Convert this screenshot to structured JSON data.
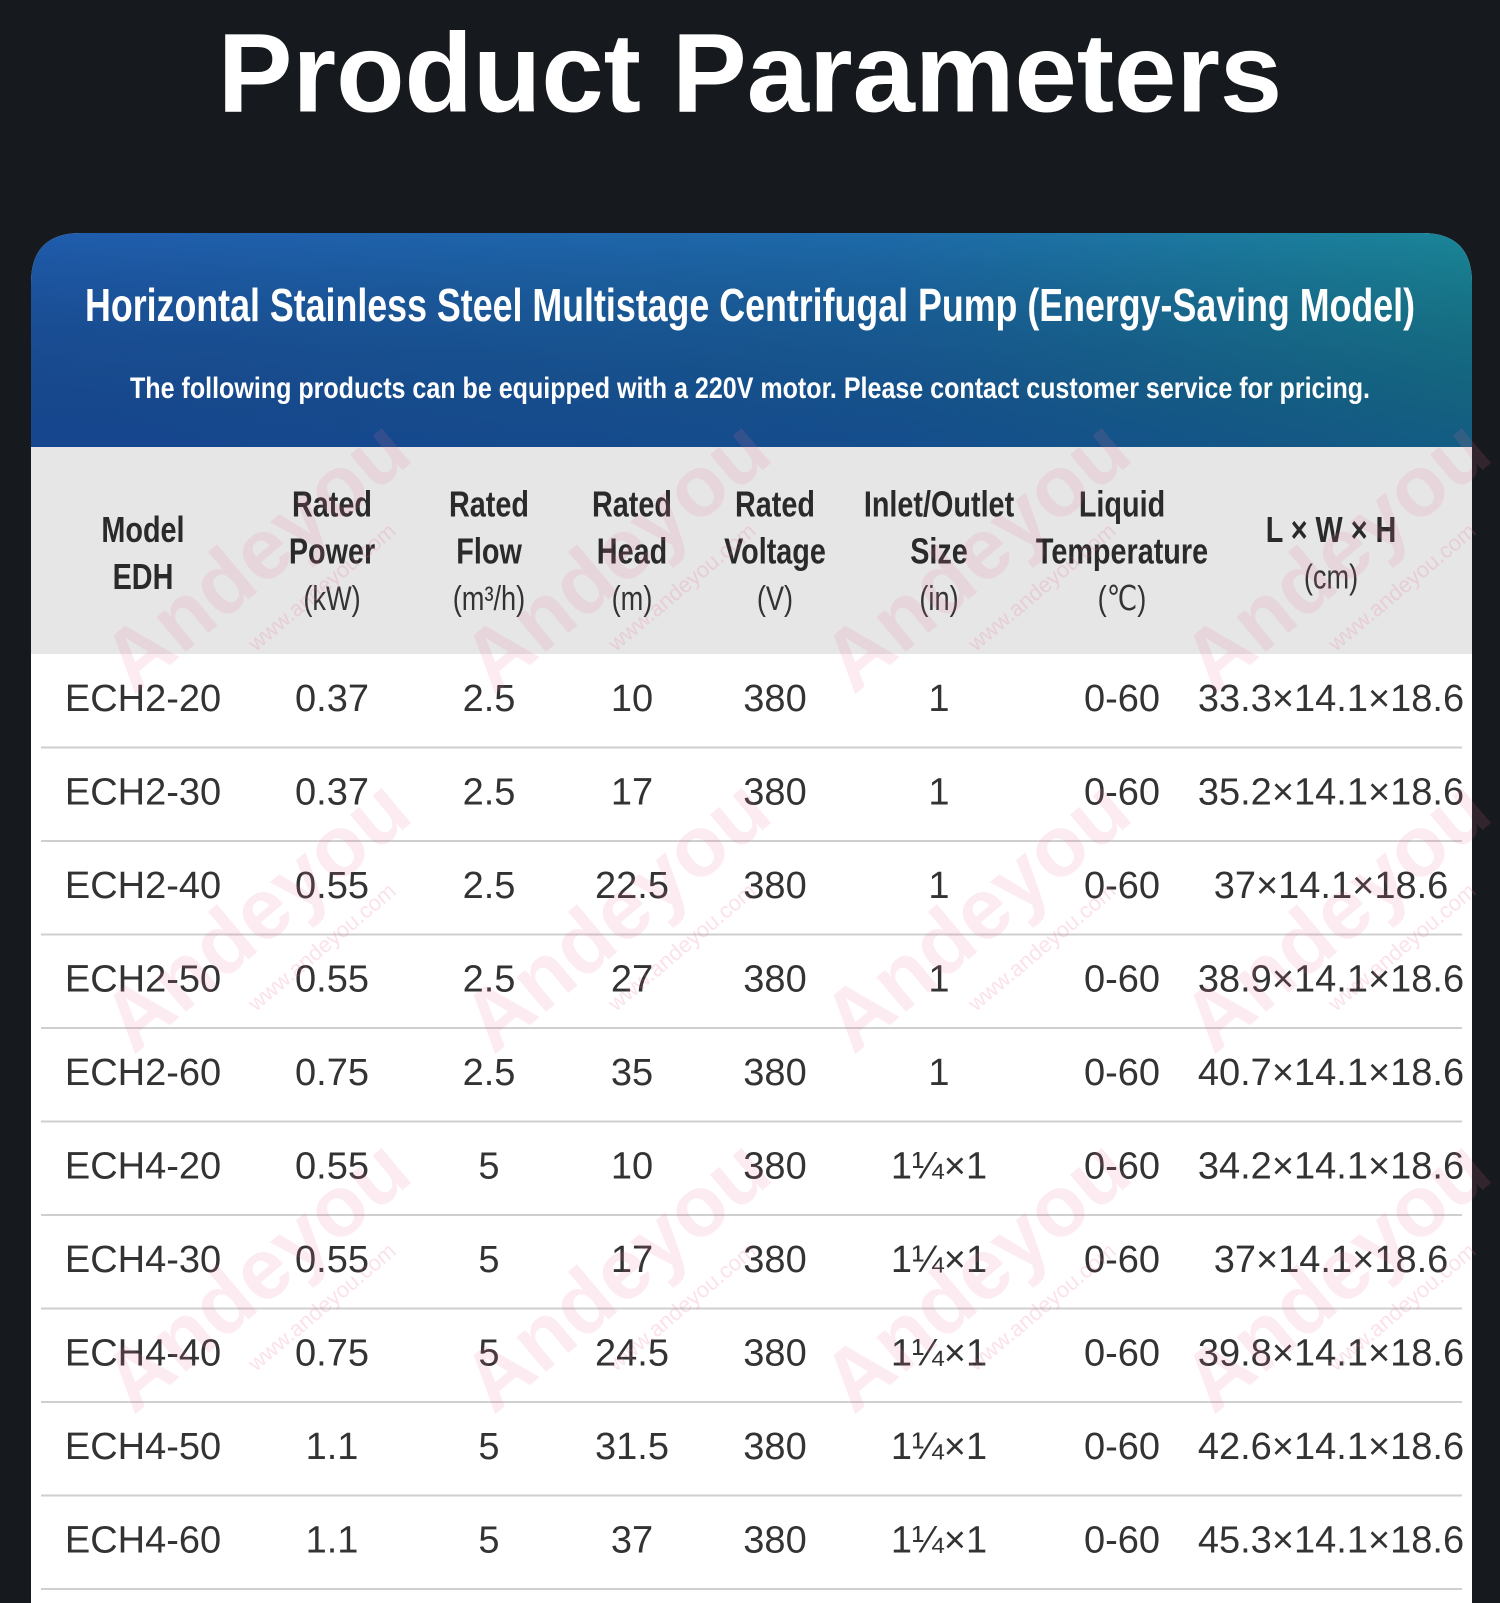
{
  "title": "Product Parameters",
  "card": {
    "title": "Horizontal Stainless Steel Multistage Centrifugal Pump (Energy-Saving Model)",
    "subtitle": "The following products can be equipped with a 220V motor. Please contact customer service for pricing."
  },
  "table": {
    "headers": [
      [
        "Model",
        "EDH"
      ],
      [
        "Rated",
        "Power",
        "(kW)"
      ],
      [
        "Rated",
        "Flow",
        "(m³/h)"
      ],
      [
        "Rated",
        "Head",
        "(m)"
      ],
      [
        "Rated",
        "Voltage",
        "(V)"
      ],
      [
        "Inlet/Outlet",
        "Size",
        "(in)"
      ],
      [
        "Liquid",
        "Temperature",
        "(℃)"
      ],
      [
        "L × W × H",
        "(cm)"
      ]
    ],
    "rows": [
      [
        "ECH2-20",
        0.37,
        2.5,
        10,
        380,
        1,
        "0-60",
        "33.3×14.1×18.6"
      ],
      [
        "ECH2-30",
        0.37,
        2.5,
        17,
        380,
        1,
        "0-60",
        "35.2×14.1×18.6"
      ],
      [
        "ECH2-40",
        0.55,
        2.5,
        22.5,
        380,
        1,
        "0-60",
        "37×14.1×18.6"
      ],
      [
        "ECH2-50",
        0.55,
        2.5,
        27,
        380,
        1,
        "0-60",
        "38.9×14.1×18.6"
      ],
      [
        "ECH2-60",
        0.75,
        2.5,
        35,
        380,
        1,
        "0-60",
        "40.7×14.1×18.6"
      ],
      [
        "ECH4-20",
        0.55,
        5,
        10,
        380,
        "1¼×1",
        "0-60",
        "34.2×14.1×18.6"
      ],
      [
        "ECH4-30",
        0.55,
        5,
        17,
        380,
        "1¼×1",
        "0-60",
        "37×14.1×18.6"
      ],
      [
        "ECH4-40",
        0.75,
        5,
        24.5,
        380,
        "1¼×1",
        "0-60",
        "39.8×14.1×18.6"
      ],
      [
        "ECH4-50",
        1.1,
        5,
        31.5,
        380,
        "1¼×1",
        "0-60",
        "42.6×14.1×18.6"
      ],
      [
        "ECH4-60",
        1.1,
        5,
        37,
        380,
        "1¼×1",
        "0-60",
        "45.3×14.1×18.6"
      ]
    ]
  },
  "watermark": {
    "brand": "Andeyou",
    "url": "www.andeyou.com"
  }
}
